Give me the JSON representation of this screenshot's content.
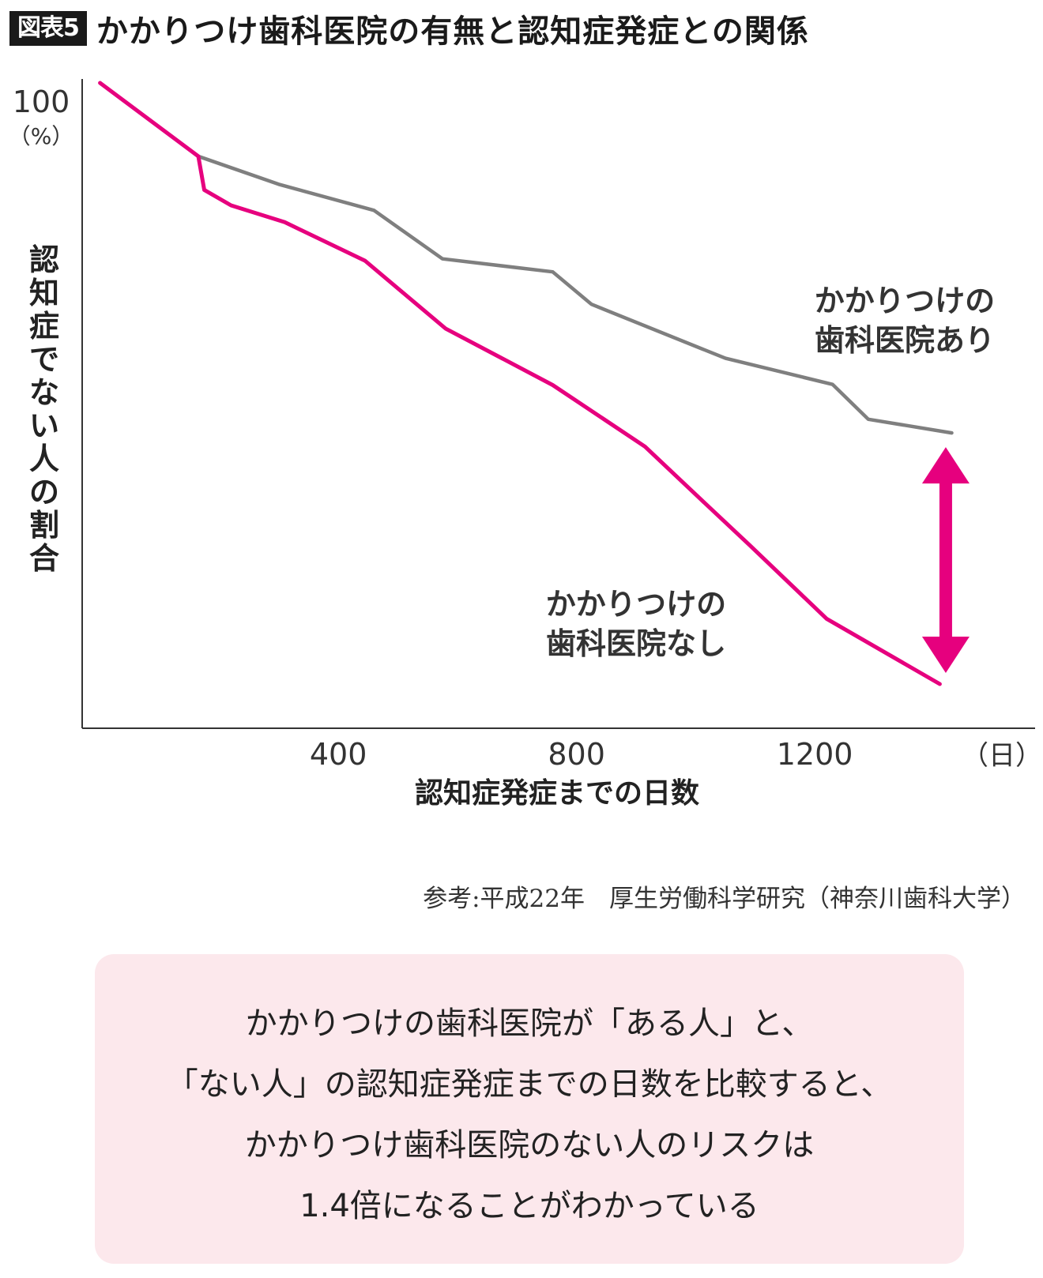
{
  "header": {
    "badge": "図表5",
    "title": "かかりつけ歯科医院の有無と認知症発症との関係"
  },
  "chart_data": {
    "type": "line",
    "title": "かかりつけ歯科医院の有無と認知症発症との関係",
    "xlabel": "認知症発症までの日数",
    "x_unit": "（日）",
    "ylabel": "認知症でない人の割合",
    "y_top_label": "100",
    "y_unit": "（%）",
    "x_ticks": [
      400,
      800,
      1200
    ],
    "xlim": [
      -30,
      1570
    ],
    "ylim": [
      0,
      100
    ],
    "grid": false,
    "series": [
      {
        "name": "かかりつけの歯科医院あり",
        "label_lines": [
          "かかりつけの",
          "歯科医院あり"
        ],
        "color": "#7f7f7f",
        "points": [
          [
            0,
            100
          ],
          [
            165,
            88.2
          ],
          [
            300,
            83.7
          ],
          [
            460,
            79.5
          ],
          [
            575,
            71.7
          ],
          [
            760,
            69.6
          ],
          [
            825,
            64.4
          ],
          [
            1050,
            55.7
          ],
          [
            1230,
            51.5
          ],
          [
            1290,
            45.9
          ],
          [
            1430,
            43.7
          ]
        ]
      },
      {
        "name": "かかりつけの歯科医院なし",
        "label_lines": [
          "かかりつけの",
          "歯科医院なし"
        ],
        "color": "#e6007e",
        "points": [
          [
            0,
            100
          ],
          [
            165,
            88.2
          ],
          [
            175,
            82.8
          ],
          [
            220,
            80.3
          ],
          [
            310,
            77.6
          ],
          [
            445,
            71.4
          ],
          [
            580,
            60.5
          ],
          [
            760,
            51.4
          ],
          [
            915,
            41.5
          ],
          [
            1010,
            32.9
          ],
          [
            1090,
            25.7
          ],
          [
            1220,
            13.8
          ],
          [
            1410,
            3.3
          ]
        ]
      }
    ],
    "arrow": {
      "x": 1420,
      "y_from": 43.7,
      "y_to": 3.3,
      "color": "#e6007e"
    }
  },
  "source": "参考:平成22年　厚生労働科学研究（神奈川歯科大学）",
  "summary": {
    "lines": [
      "かかりつけの歯科医院が「ある人」と、",
      "「ない人」の認知症発症までの日数を比較すると、",
      "かかりつけ歯科医院のない人のリスクは",
      "1.4倍になることがわかっている"
    ]
  }
}
